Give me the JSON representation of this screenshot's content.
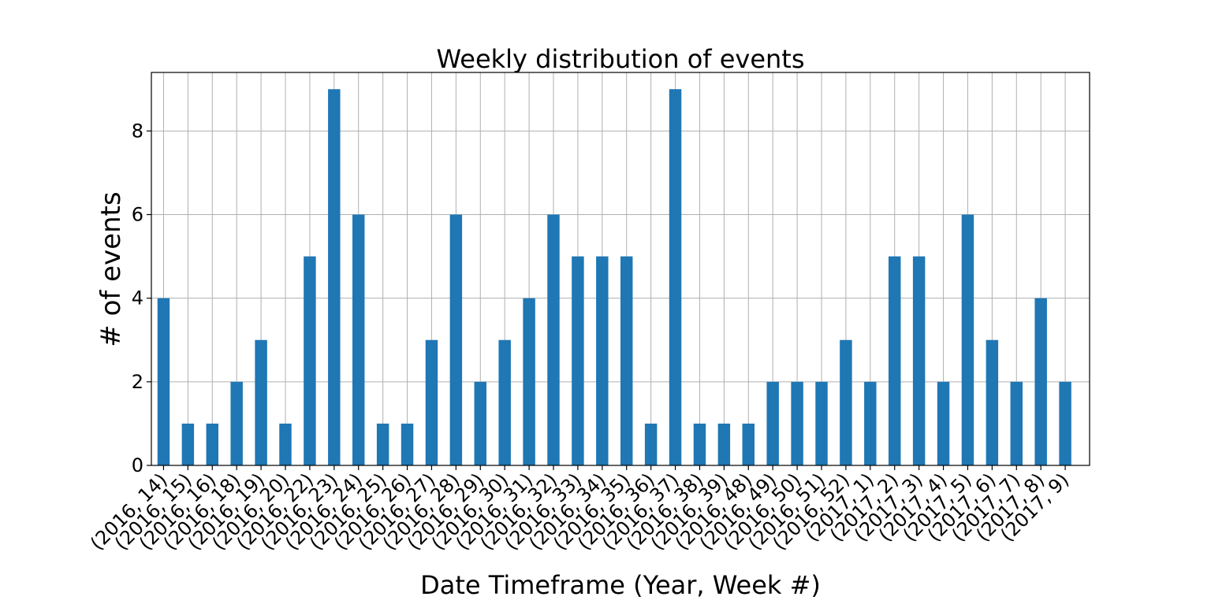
{
  "chart_data": {
    "type": "bar",
    "title": "Weekly distribution of events",
    "xlabel": "Date Timeframe (Year, Week #)",
    "ylabel": "# of events",
    "ylim": [
      0,
      9.4
    ],
    "yticks": [
      "0",
      "2",
      "4",
      "6",
      "8"
    ],
    "grid": true,
    "bar_color": "#1f77b4",
    "categories": [
      "(2016, 14)",
      "(2016, 15)",
      "(2016, 16)",
      "(2016, 18)",
      "(2016, 19)",
      "(2016, 20)",
      "(2016, 22)",
      "(2016, 23)",
      "(2016, 24)",
      "(2016, 25)",
      "(2016, 26)",
      "(2016, 27)",
      "(2016, 28)",
      "(2016, 29)",
      "(2016, 30)",
      "(2016, 31)",
      "(2016, 32)",
      "(2016, 33)",
      "(2016, 34)",
      "(2016, 35)",
      "(2016, 36)",
      "(2016, 37)",
      "(2016, 38)",
      "(2016, 39)",
      "(2016, 48)",
      "(2016, 49)",
      "(2016, 50)",
      "(2016, 51)",
      "(2016, 52)",
      "(2017, 1)",
      "(2017, 2)",
      "(2017, 3)",
      "(2017, 4)",
      "(2017, 5)",
      "(2017, 6)",
      "(2017, 7)",
      "(2017, 8)",
      "(2017, 9)"
    ],
    "values": [
      4,
      1,
      1,
      2,
      3,
      1,
      5,
      9,
      6,
      1,
      1,
      3,
      6,
      2,
      3,
      4,
      6,
      5,
      5,
      5,
      1,
      9,
      1,
      1,
      1,
      2,
      2,
      2,
      3,
      2,
      5,
      5,
      2,
      6,
      3,
      2,
      4,
      2
    ]
  }
}
